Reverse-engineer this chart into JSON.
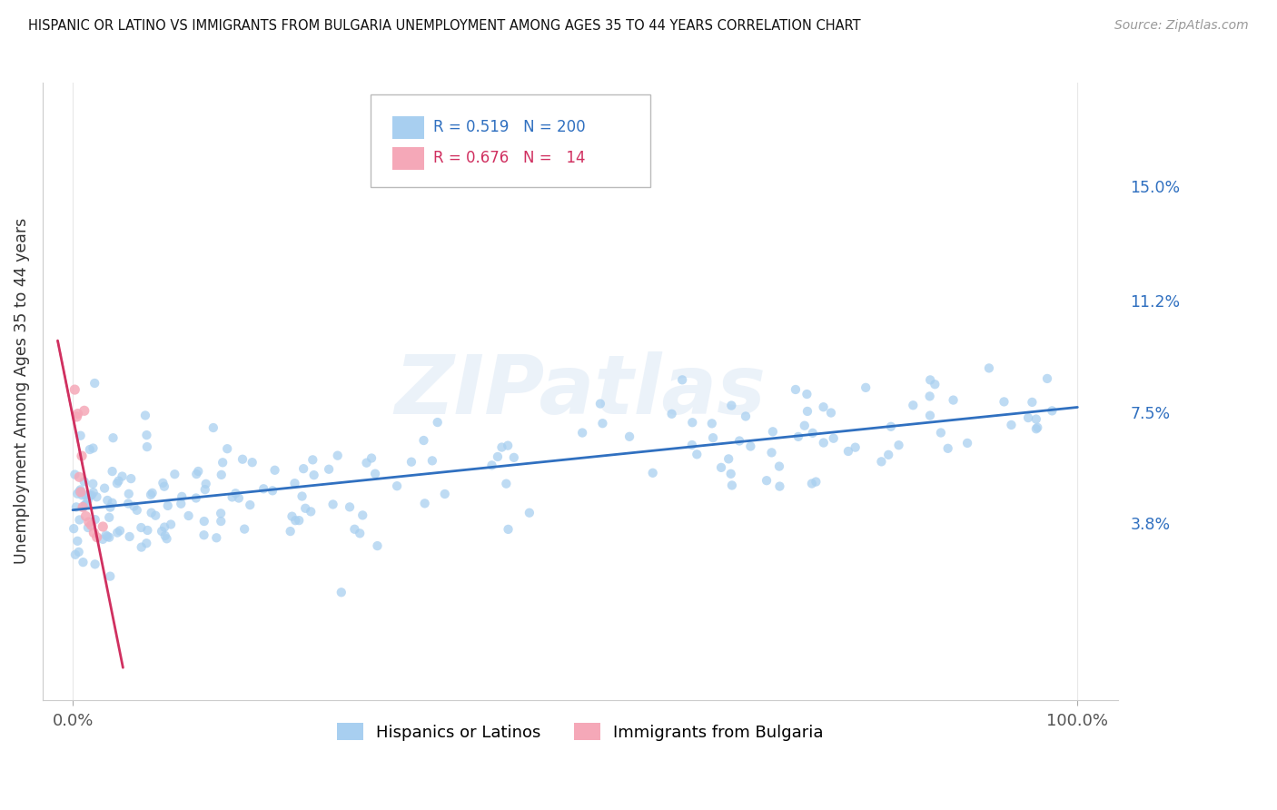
{
  "title": "HISPANIC OR LATINO VS IMMIGRANTS FROM BULGARIA UNEMPLOYMENT AMONG AGES 35 TO 44 YEARS CORRELATION CHART",
  "source": "Source: ZipAtlas.com",
  "ylabel": "Unemployment Among Ages 35 to 44 years",
  "xlim": [
    -3,
    104
  ],
  "ylim": [
    -2.0,
    18.5
  ],
  "xtick_positions": [
    0,
    100
  ],
  "xticklabels": [
    "0.0%",
    "100.0%"
  ],
  "ytick_positions": [
    3.8,
    7.5,
    11.2,
    15.0
  ],
  "ytick_labels": [
    "3.8%",
    "7.5%",
    "11.2%",
    "15.0%"
  ],
  "blue_color": "#a8cff0",
  "pink_color": "#f5a8b8",
  "blue_line_color": "#3070c0",
  "pink_line_color": "#d03060",
  "watermark": "ZIPatlas",
  "grid_color": "#e8e8e8",
  "border_color": "#cccccc",
  "blue_R": "0.519",
  "blue_N": "200",
  "pink_R": "0.676",
  "pink_N": "14",
  "legend_label_blue": "Hispanics or Latinos",
  "legend_label_pink": "Immigrants from Bulgaria"
}
